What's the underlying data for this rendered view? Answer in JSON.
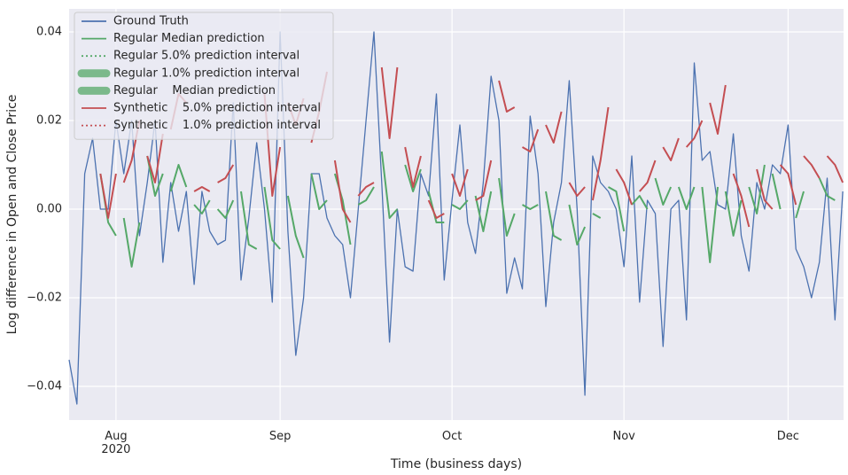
{
  "chart_data": {
    "type": "line",
    "xlabel": "Time (business days)",
    "ylabel": "Log difference in Open and Close Price",
    "xlim": [
      -6,
      93.1
    ],
    "ylim": [
      -0.0476,
      0.0452
    ],
    "xticks": [
      {
        "value": 0,
        "label": "Aug\n2020"
      },
      {
        "value": 21,
        "label": "Sep"
      },
      {
        "value": 43,
        "label": "Oct"
      },
      {
        "value": 65,
        "label": "Nov"
      },
      {
        "value": 86,
        "label": "Dec"
      }
    ],
    "yticks": [
      {
        "value": -0.04,
        "label": "−0.04"
      },
      {
        "value": -0.02,
        "label": "−0.02"
      },
      {
        "value": 0,
        "label": "0.00"
      },
      0.02,
      0.04
    ],
    "grid": true,
    "legend_position": "upper left",
    "legend": [
      {
        "label": "Ground Truth",
        "color": "#4c72b0",
        "style": "solid"
      },
      {
        "label": "Regular Median prediction",
        "color": "#55a868",
        "style": "solid"
      },
      {
        "label": "Regular 5.0% prediction interval",
        "color": "#55a868",
        "style": "dotted"
      },
      {
        "label": "Regular 1.0% prediction interval",
        "color": "#55a868",
        "style": "thick"
      },
      {
        "label": "Regular    Median prediction",
        "color": "#55a868",
        "style": "thick"
      },
      {
        "label": "Synthetic    5.0% prediction interval",
        "color": "#c44e52",
        "style": "solid"
      },
      {
        "label": "Synthetic    1.0% prediction interval",
        "color": "#c44e52",
        "style": "dotted"
      }
    ],
    "series": [
      {
        "color": "#4c72b0",
        "width": 1.3,
        "segments": [
          {
            "x": [
              -6,
              -5,
              -4,
              -3,
              -2,
              -1,
              0,
              1,
              2,
              3,
              4,
              5,
              6,
              7,
              8,
              9,
              10,
              11,
              12,
              13,
              14,
              15,
              16,
              17,
              18,
              19,
              20,
              21,
              22,
              23,
              24,
              25,
              26,
              27,
              28,
              29,
              30,
              31,
              32,
              33,
              34,
              35,
              36,
              37,
              38,
              39,
              40,
              41,
              42,
              43,
              44,
              45,
              46,
              47,
              48,
              49,
              50,
              51,
              52,
              53,
              54,
              55,
              56,
              57,
              58,
              59,
              60,
              61,
              62,
              63,
              64,
              65,
              66,
              67,
              68,
              69,
              70,
              71,
              72,
              73,
              74,
              75,
              76,
              77,
              78,
              79,
              80,
              81,
              82,
              83,
              84,
              85,
              86,
              87,
              88,
              89,
              90,
              91,
              92,
              93
            ],
            "values": [
              -0.034,
              -0.044,
              0.008,
              0.016,
              0.0,
              0.0,
              0.02,
              0.008,
              0.02,
              -0.006,
              0.006,
              0.02,
              -0.012,
              0.006,
              -0.005,
              0.004,
              -0.017,
              0.004,
              -0.005,
              -0.008,
              -0.007,
              0.024,
              -0.016,
              -0.002,
              0.015,
              0.0,
              -0.021,
              0.04,
              -0.005,
              -0.033,
              -0.02,
              0.008,
              0.008,
              -0.002,
              -0.006,
              -0.008,
              -0.02,
              0.0,
              0.02,
              0.04,
              0.006,
              -0.03,
              0.0,
              -0.013,
              -0.014,
              0.008,
              0.003,
              0.026,
              -0.016,
              0.002,
              0.019,
              -0.003,
              -0.01,
              0.006,
              0.03,
              0.02,
              -0.019,
              -0.011,
              -0.018,
              0.021,
              0.008,
              -0.022,
              -0.003,
              0.006,
              0.029,
              0.0,
              -0.042,
              0.012,
              0.006,
              0.004,
              0.0,
              -0.013,
              0.012,
              -0.021,
              0.002,
              -0.001,
              -0.031,
              0.0,
              0.002,
              -0.025,
              0.033,
              0.011,
              0.013,
              0.001,
              0.0,
              0.017,
              -0.006,
              -0.014,
              0.006,
              0.0,
              0.01,
              0.008,
              0.019,
              -0.009,
              -0.013,
              -0.02,
              -0.012,
              0.007,
              -0.025,
              0.004
            ]
          }
        ]
      },
      {
        "color": "#55a868",
        "width": 2,
        "segments": [
          {
            "x": [
              -2,
              -1,
              0
            ],
            "values": [
              0.008,
              -0.003,
              -0.006
            ]
          },
          {
            "x": [
              1,
              2,
              3
            ],
            "values": [
              -0.002,
              -0.013,
              -0.003
            ]
          },
          {
            "x": [
              4,
              5,
              6
            ],
            "values": [
              0.012,
              0.003,
              0.008
            ]
          },
          {
            "x": [
              7,
              8,
              9
            ],
            "values": [
              0.004,
              0.01,
              0.005
            ]
          },
          {
            "x": [
              10,
              11,
              12
            ],
            "values": [
              0.001,
              -0.001,
              0.002
            ]
          },
          {
            "x": [
              13,
              14,
              15
            ],
            "values": [
              0.0,
              -0.002,
              0.002
            ]
          },
          {
            "x": [
              16,
              17,
              18
            ],
            "values": [
              0.004,
              -0.008,
              -0.009
            ]
          },
          {
            "x": [
              19,
              20,
              21
            ],
            "values": [
              0.005,
              -0.007,
              -0.009
            ]
          },
          {
            "x": [
              22,
              23,
              24
            ],
            "values": [
              0.003,
              -0.006,
              -0.011
            ]
          },
          {
            "x": [
              25,
              26,
              27
            ],
            "values": [
              0.008,
              0.0,
              0.002
            ]
          },
          {
            "x": [
              28,
              29,
              30
            ],
            "values": [
              0.008,
              0.002,
              -0.008
            ]
          },
          {
            "x": [
              31,
              32,
              33
            ],
            "values": [
              0.001,
              0.002,
              0.005
            ]
          },
          {
            "x": [
              34,
              35,
              36
            ],
            "values": [
              0.013,
              -0.002,
              0.0
            ]
          },
          {
            "x": [
              37,
              38,
              39
            ],
            "values": [
              0.01,
              0.004,
              0.009
            ]
          },
          {
            "x": [
              40,
              41,
              42
            ],
            "values": [
              0.004,
              -0.003,
              -0.003
            ]
          },
          {
            "x": [
              43,
              44,
              45
            ],
            "values": [
              0.001,
              0.0,
              0.002
            ]
          },
          {
            "x": [
              46,
              47,
              48
            ],
            "values": [
              0.003,
              -0.005,
              0.004
            ]
          },
          {
            "x": [
              49,
              50,
              51
            ],
            "values": [
              0.007,
              -0.006,
              -0.001
            ]
          },
          {
            "x": [
              52,
              53,
              54
            ],
            "values": [
              0.001,
              0.0,
              0.001
            ]
          },
          {
            "x": [
              55,
              56,
              57
            ],
            "values": [
              0.004,
              -0.006,
              -0.007
            ]
          },
          {
            "x": [
              58,
              59,
              60
            ],
            "values": [
              0.001,
              -0.008,
              -0.004
            ]
          },
          {
            "x": [
              61,
              62
            ],
            "values": [
              -0.001,
              -0.002
            ]
          },
          {
            "x": [
              63,
              64,
              65
            ],
            "values": [
              0.005,
              0.004,
              -0.005
            ]
          },
          {
            "x": [
              66,
              67,
              68
            ],
            "values": [
              0.001,
              0.003,
              0.0
            ]
          },
          {
            "x": [
              69,
              70,
              71
            ],
            "values": [
              0.007,
              0.001,
              0.005
            ]
          },
          {
            "x": [
              72,
              73,
              74
            ],
            "values": [
              0.005,
              0.0,
              0.005
            ]
          },
          {
            "x": [
              75,
              76,
              77
            ],
            "values": [
              0.005,
              -0.012,
              0.005
            ]
          },
          {
            "x": [
              78,
              79,
              80
            ],
            "values": [
              0.004,
              -0.006,
              0.002
            ]
          },
          {
            "x": [
              81,
              82,
              83
            ],
            "values": [
              0.005,
              -0.001,
              0.01
            ]
          },
          {
            "x": [
              84,
              85
            ],
            "values": [
              0.008,
              0.0
            ]
          },
          {
            "x": [
              87,
              88
            ],
            "values": [
              -0.002,
              0.004
            ]
          },
          {
            "x": [
              90,
              91,
              92
            ],
            "values": [
              0.007,
              0.003,
              0.002
            ]
          }
        ]
      },
      {
        "color": "#c44e52",
        "width": 2,
        "segments": [
          {
            "x": [
              -2,
              -1,
              0
            ],
            "values": [
              0.008,
              -0.002,
              0.008
            ]
          },
          {
            "x": [
              1,
              2,
              3
            ],
            "values": [
              0.006,
              0.011,
              0.02
            ]
          },
          {
            "x": [
              4,
              5,
              6
            ],
            "values": [
              0.012,
              0.006,
              0.017
            ]
          },
          {
            "x": [
              7,
              8,
              9
            ],
            "values": [
              0.018,
              0.026,
              0.024
            ]
          },
          {
            "x": [
              10,
              11,
              12
            ],
            "values": [
              0.004,
              0.005,
              0.004
            ]
          },
          {
            "x": [
              13,
              14,
              15
            ],
            "values": [
              0.006,
              0.007,
              0.01
            ]
          },
          {
            "x": [
              19,
              20,
              21
            ],
            "values": [
              0.026,
              0.003,
              0.014
            ]
          },
          {
            "x": [
              22,
              23,
              24
            ],
            "values": [
              0.024,
              0.019,
              0.025
            ]
          },
          {
            "x": [
              25,
              26,
              27
            ],
            "values": [
              0.015,
              0.022,
              0.031
            ]
          },
          {
            "x": [
              28,
              29,
              30
            ],
            "values": [
              0.011,
              0.0,
              -0.003
            ]
          },
          {
            "x": [
              31,
              32,
              33
            ],
            "values": [
              0.003,
              0.005,
              0.006
            ]
          },
          {
            "x": [
              34,
              35,
              36
            ],
            "values": [
              0.032,
              0.016,
              0.032
            ]
          },
          {
            "x": [
              37,
              38,
              39
            ],
            "values": [
              0.014,
              0.005,
              0.012
            ]
          },
          {
            "x": [
              40,
              41,
              42
            ],
            "values": [
              0.002,
              -0.002,
              -0.001
            ]
          },
          {
            "x": [
              43,
              44,
              45
            ],
            "values": [
              0.008,
              0.003,
              0.009
            ]
          },
          {
            "x": [
              46,
              47,
              48
            ],
            "values": [
              0.002,
              0.003,
              0.011
            ]
          },
          {
            "x": [
              49,
              50,
              51
            ],
            "values": [
              0.029,
              0.022,
              0.023
            ]
          },
          {
            "x": [
              52,
              53,
              54
            ],
            "values": [
              0.014,
              0.013,
              0.018
            ]
          },
          {
            "x": [
              55,
              56,
              57
            ],
            "values": [
              0.019,
              0.015,
              0.022
            ]
          },
          {
            "x": [
              58,
              59,
              60
            ],
            "values": [
              0.006,
              0.003,
              0.005
            ]
          },
          {
            "x": [
              61,
              62,
              63
            ],
            "values": [
              0.002,
              0.011,
              0.023
            ]
          },
          {
            "x": [
              64,
              65,
              66
            ],
            "values": [
              0.009,
              0.006,
              0.001
            ]
          },
          {
            "x": [
              67,
              68,
              69
            ],
            "values": [
              0.004,
              0.006,
              0.011
            ]
          },
          {
            "x": [
              70,
              71,
              72
            ],
            "values": [
              0.014,
              0.011,
              0.016
            ]
          },
          {
            "x": [
              73,
              74,
              75
            ],
            "values": [
              0.014,
              0.016,
              0.02
            ]
          },
          {
            "x": [
              76,
              77,
              78
            ],
            "values": [
              0.024,
              0.017,
              0.028
            ]
          },
          {
            "x": [
              79,
              80,
              81
            ],
            "values": [
              0.008,
              0.003,
              -0.004
            ]
          },
          {
            "x": [
              82,
              83,
              84
            ],
            "values": [
              0.009,
              0.002,
              0.0
            ]
          },
          {
            "x": [
              85,
              86,
              87
            ],
            "values": [
              0.01,
              0.008,
              0.001
            ]
          },
          {
            "x": [
              88,
              89,
              90
            ],
            "values": [
              0.012,
              0.01,
              0.007
            ]
          },
          {
            "x": [
              91,
              92,
              93
            ],
            "values": [
              0.012,
              0.01,
              0.006
            ]
          }
        ]
      }
    ]
  }
}
